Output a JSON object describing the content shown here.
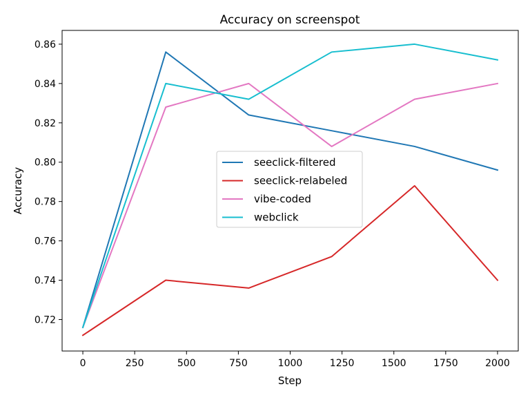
{
  "chart_data": {
    "type": "line",
    "title": "Accuracy on screenspot",
    "xlabel": "Step",
    "ylabel": "Accuracy",
    "xlim": [
      -100,
      2100
    ],
    "ylim": [
      0.704,
      0.867
    ],
    "xticks": [
      0,
      250,
      500,
      750,
      1000,
      1250,
      1500,
      1750,
      2000
    ],
    "yticks": [
      0.72,
      0.74,
      0.76,
      0.78,
      0.8,
      0.82,
      0.84,
      0.86
    ],
    "grid": false,
    "legend_position": "center-right",
    "x": [
      0,
      400,
      800,
      1200,
      1600,
      2000
    ],
    "series": [
      {
        "name": "seeclick-filtered",
        "color": "#1f77b4",
        "values": [
          0.716,
          0.856,
          0.824,
          0.816,
          0.808,
          0.796
        ]
      },
      {
        "name": "seeclick-relabeled",
        "color": "#d62728",
        "values": [
          0.712,
          0.74,
          0.736,
          0.752,
          0.788,
          0.74
        ]
      },
      {
        "name": "vibe-coded",
        "color": "#e377c2",
        "values": [
          0.716,
          0.828,
          0.84,
          0.808,
          0.832,
          0.84
        ]
      },
      {
        "name": "webclick",
        "color": "#17becf",
        "values": [
          0.716,
          0.84,
          0.832,
          0.856,
          0.86,
          0.852
        ]
      }
    ]
  }
}
